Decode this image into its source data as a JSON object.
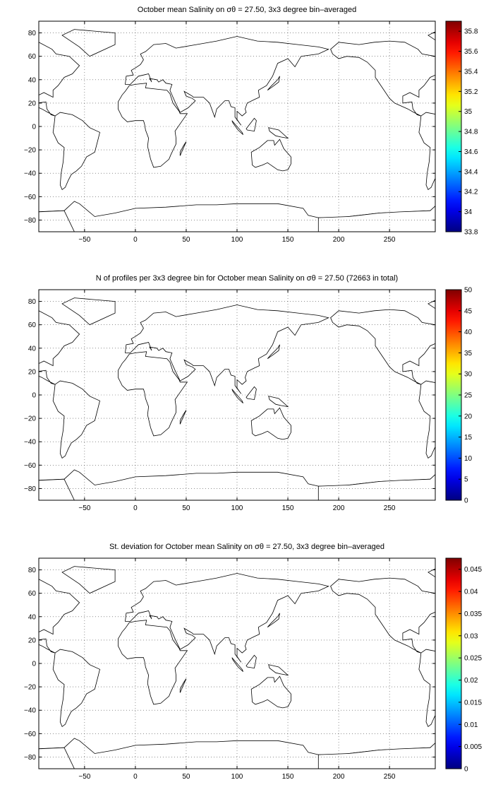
{
  "panels": [
    {
      "title": "October mean Salinity on σθ = 27.50, 3x3 degree bin–averaged",
      "colorbar_ticks": [
        "35.8",
        "35.6",
        "35.4",
        "35.2",
        "35",
        "34.8",
        "34.6",
        "34.4",
        "34.2",
        "34",
        "33.8"
      ]
    },
    {
      "title": "N of profiles per 3x3 degree bin for October mean Salinity on σθ = 27.50 (72663 in total)",
      "colorbar_ticks": [
        "50",
        "45",
        "40",
        "35",
        "30",
        "25",
        "20",
        "15",
        "10",
        "5",
        "0"
      ]
    },
    {
      "title": "St. deviation for October mean Salinity on σθ = 27.50, 3x3 degree bin–averaged",
      "colorbar_ticks": [
        "0.045",
        "0.04",
        "0.035",
        "0.03",
        "0.025",
        "0.02",
        "0.015",
        "0.01",
        "0.005",
        "0"
      ]
    }
  ],
  "chart_data": [
    {
      "type": "heatmap",
      "title": "October mean Salinity on σθ = 27.50, 3x3 degree bin–averaged",
      "x_ticks": [
        -50,
        0,
        50,
        100,
        150,
        200,
        250
      ],
      "y_ticks": [
        80,
        60,
        40,
        20,
        0,
        -20,
        -40,
        -60,
        -80
      ],
      "xlim": [
        -95,
        295
      ],
      "ylim": [
        -90,
        90
      ],
      "colorbar_range": [
        33.8,
        35.9
      ],
      "colormap": "jet",
      "grid": true
    },
    {
      "type": "heatmap",
      "title": "N of profiles per 3x3 degree bin for October mean Salinity on σθ = 27.50 (72663 in total)",
      "x_ticks": [
        -50,
        0,
        50,
        100,
        150,
        200,
        250
      ],
      "y_ticks": [
        80,
        60,
        40,
        20,
        0,
        -20,
        -40,
        -60,
        -80
      ],
      "xlim": [
        -95,
        295
      ],
      "ylim": [
        -90,
        90
      ],
      "colorbar_range": [
        0,
        50
      ],
      "total_profiles": 72663,
      "colormap": "jet",
      "grid": true
    },
    {
      "type": "heatmap",
      "title": "St. deviation for October mean Salinity on σθ = 27.50, 3x3 degree bin–averaged",
      "x_ticks": [
        -50,
        0,
        50,
        100,
        150,
        200,
        250
      ],
      "y_ticks": [
        80,
        60,
        40,
        20,
        0,
        -20,
        -40,
        -60,
        -80
      ],
      "xlim": [
        -95,
        295
      ],
      "ylim": [
        -90,
        90
      ],
      "colorbar_range": [
        0,
        0.0475
      ],
      "colormap": "jet",
      "grid": true
    }
  ]
}
